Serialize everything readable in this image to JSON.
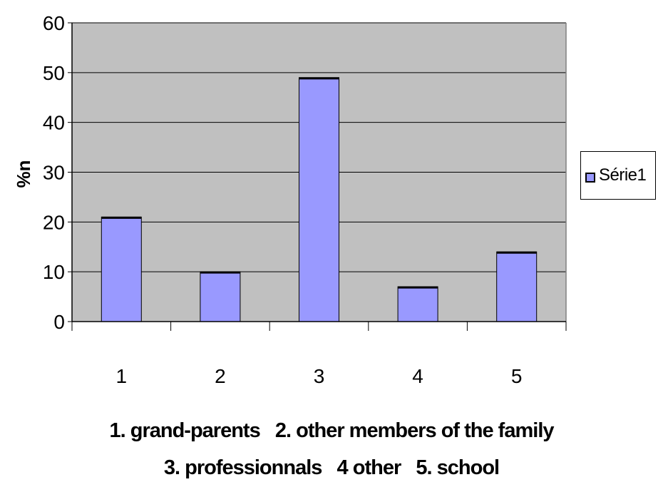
{
  "chart_data": {
    "type": "bar",
    "categories": [
      "1",
      "2",
      "3",
      "4",
      "5"
    ],
    "series": [
      {
        "name": "Série1",
        "values": [
          21,
          10,
          49,
          7,
          14
        ]
      }
    ],
    "ylabel": "%n",
    "ylim": [
      0,
      60
    ],
    "yticks": [
      "0",
      "10",
      "20",
      "30",
      "40",
      "50",
      "60"
    ],
    "grid": true,
    "legend_position": "right",
    "colors": {
      "bar": "#9999ff",
      "plot_background": "#c0c0c0",
      "bar_border": "#000000"
    }
  },
  "caption": {
    "line1": "1. grand-parents   2. other members of the family",
    "line2": "3. professionnals   4 other   5. school"
  }
}
